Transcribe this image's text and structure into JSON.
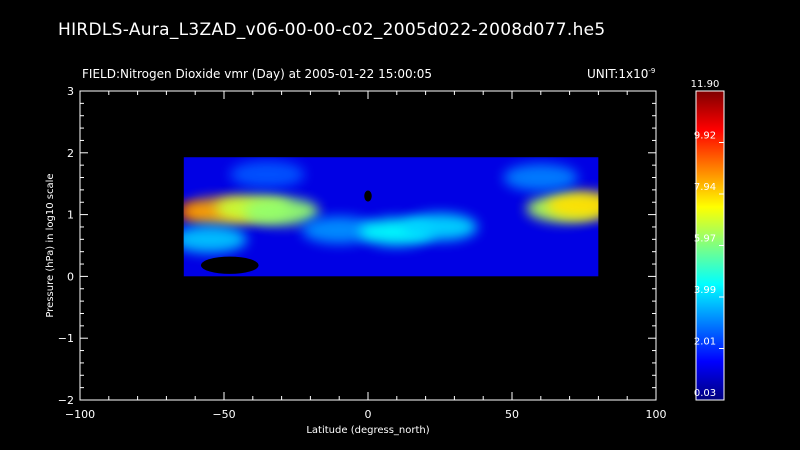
{
  "header": {
    "file_title": "HIRDLS-Aura_L3ZAD_v06-00-00-c02_2005d022-2008d077.he5",
    "field_title": "FIELD:Nitrogen Dioxide vmr (Day) at 2005-01-22 15:00:05",
    "unit_prefix": "UNIT:1x10",
    "unit_exponent": "-9"
  },
  "chart_data": {
    "type": "heatmap",
    "xlabel": "Latitude (degress_north)",
    "ylabel": "Pressure (hPa) in log10 scale",
    "xlim": [
      -100,
      100
    ],
    "ylim": [
      -2,
      3
    ],
    "xticks": [
      -100,
      -50,
      0,
      50,
      100
    ],
    "yticks": [
      -2,
      -1,
      0,
      1,
      2,
      3
    ],
    "data_extent": {
      "lat": [
        -64,
        80
      ],
      "log10_pressure": [
        0,
        1.93
      ]
    },
    "colorbar": {
      "min": 0.03,
      "max": 11.9,
      "tick_labels": [
        "11.90",
        "9.92",
        "7.94",
        "5.97",
        "3.99",
        "2.01",
        "0.03"
      ],
      "colors": [
        "#00007f",
        "#0000ff",
        "#0080ff",
        "#00ffff",
        "#80ff80",
        "#ffff00",
        "#ff8000",
        "#ff0000",
        "#7f0000"
      ]
    },
    "features": [
      {
        "lat": -62,
        "log10_pressure": 1.05,
        "value": 11.5
      },
      {
        "lat": -52,
        "log10_pressure": 1.05,
        "value": 8.5
      },
      {
        "lat": -40,
        "log10_pressure": 1.1,
        "value": 6.8
      },
      {
        "lat": -30,
        "log10_pressure": 1.05,
        "value": 6.2
      },
      {
        "lat": -55,
        "log10_pressure": 0.6,
        "value": 3.8
      },
      {
        "lat": -10,
        "log10_pressure": 0.75,
        "value": 3.2
      },
      {
        "lat": 10,
        "log10_pressure": 0.72,
        "value": 4.5
      },
      {
        "lat": 25,
        "log10_pressure": 0.8,
        "value": 4.0
      },
      {
        "lat": 68,
        "log10_pressure": 1.1,
        "value": 6.5
      },
      {
        "lat": 75,
        "log10_pressure": 1.15,
        "value": 7.8
      },
      {
        "lat": 60,
        "log10_pressure": 1.6,
        "value": 3.0
      },
      {
        "lat": -35,
        "log10_pressure": 1.65,
        "value": 2.5
      }
    ],
    "missing_regions": [
      {
        "lat": -48,
        "log10_pressure": 0.18,
        "half_width_deg": 10,
        "half_height": 0.14
      },
      {
        "lat": 0,
        "log10_pressure": 1.3,
        "half_width_deg": 1.3,
        "half_height": 0.09
      }
    ]
  }
}
